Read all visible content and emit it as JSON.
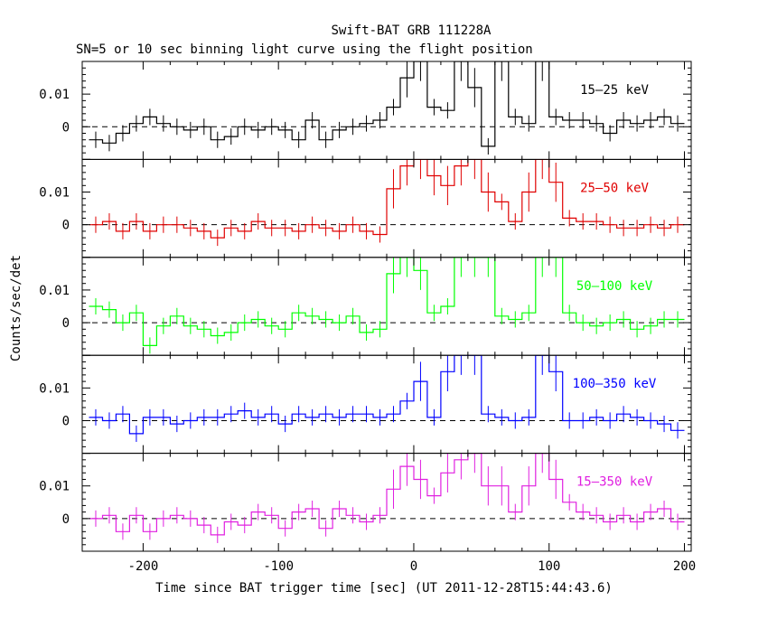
{
  "title": "Swift-BAT GRB 111228A",
  "subtitle": "SN=5 or 10 sec binning light curve using the flight position",
  "xlabel": "Time since BAT trigger time [sec] (UT 2011-12-28T15:44:43.6)",
  "ylabel": "Counts/sec/det",
  "colors": {
    "15-25": "#000000",
    "25-50": "#e00000",
    "50-100": "#00ff00",
    "100-350": "#0000ff",
    "15-350": "#e020e0"
  },
  "chart_data": {
    "type": "line",
    "style": "step histogram with error bars, 5 stacked panels sharing x axis",
    "x_ticks": [
      -200,
      -100,
      0,
      100,
      200
    ],
    "xlim": [
      -245,
      205
    ],
    "y_ticks": [
      0,
      0.01
    ],
    "ylim": [
      -0.01,
      0.02
    ],
    "reference_line": "dashed at y=0",
    "panels": [
      {
        "name": "15–25 keV",
        "color": "#000000",
        "x": [
          -235,
          -225,
          -215,
          -205,
          -195,
          -185,
          -175,
          -165,
          -155,
          -145,
          -135,
          -125,
          -115,
          -105,
          -95,
          -85,
          -75,
          -65,
          -55,
          -45,
          -35,
          -25,
          -15,
          -5,
          5,
          15,
          25,
          35,
          45,
          55,
          65,
          75,
          85,
          95,
          105,
          115,
          125,
          135,
          145,
          155,
          165,
          175,
          185,
          195
        ],
        "y": [
          -0.004,
          -0.005,
          -0.002,
          0.001,
          0.003,
          0.001,
          0,
          -0.001,
          0,
          -0.004,
          -0.003,
          0,
          -0.001,
          0,
          -0.001,
          -0.004,
          0.002,
          -0.004,
          -0.001,
          0,
          0.001,
          0.002,
          0.006,
          0.015,
          0.02,
          0.006,
          0.005,
          0.02,
          0.012,
          -0.006,
          0.02,
          0.003,
          0.001,
          0.02,
          0.003,
          0.002,
          0.002,
          0.001,
          -0.002,
          0.002,
          0.001,
          0.002,
          0.003,
          0.001
        ]
      },
      {
        "name": "25–50 keV",
        "color": "#e00000",
        "x": [
          -235,
          -225,
          -215,
          -205,
          -195,
          -185,
          -175,
          -165,
          -155,
          -145,
          -135,
          -125,
          -115,
          -105,
          -95,
          -85,
          -75,
          -65,
          -55,
          -45,
          -35,
          -25,
          -15,
          -5,
          5,
          15,
          25,
          35,
          45,
          55,
          65,
          75,
          85,
          95,
          105,
          115,
          125,
          135,
          145,
          155,
          165,
          175,
          185,
          195
        ],
        "y": [
          0,
          0.001,
          -0.002,
          0.001,
          -0.002,
          0,
          0,
          -0.001,
          -0.002,
          -0.004,
          -0.001,
          -0.002,
          0.001,
          -0.001,
          -0.001,
          -0.002,
          0,
          -0.001,
          -0.002,
          0,
          -0.002,
          -0.003,
          0.011,
          0.018,
          0.02,
          0.015,
          0.012,
          0.018,
          0.02,
          0.01,
          0.007,
          0.001,
          0.01,
          0.02,
          0.013,
          0.002,
          0.001,
          0.001,
          0,
          -0.001,
          -0.001,
          0,
          -0.001,
          0
        ]
      },
      {
        "name": "50–100 keV",
        "color": "#00ff00",
        "x": [
          -235,
          -225,
          -215,
          -205,
          -195,
          -185,
          -175,
          -165,
          -155,
          -145,
          -135,
          -125,
          -115,
          -105,
          -95,
          -85,
          -75,
          -65,
          -55,
          -45,
          -35,
          -25,
          -15,
          -5,
          5,
          15,
          25,
          35,
          45,
          55,
          65,
          75,
          85,
          95,
          105,
          115,
          125,
          135,
          145,
          155,
          165,
          175,
          185,
          195
        ],
        "y": [
          0.005,
          0.004,
          0,
          0.003,
          -0.007,
          -0.001,
          0.002,
          -0.001,
          -0.002,
          -0.004,
          -0.003,
          0,
          0.001,
          -0.001,
          -0.002,
          0.003,
          0.002,
          0.001,
          0,
          0.002,
          -0.003,
          -0.002,
          0.015,
          0.02,
          0.016,
          0.003,
          0.005,
          0.02,
          0.02,
          0.02,
          0.002,
          0.001,
          0.003,
          0.02,
          0.02,
          0.003,
          0,
          -0.001,
          0,
          0.001,
          -0.002,
          -0.001,
          0.001,
          0.001
        ]
      },
      {
        "name": "100–350 keV",
        "color": "#0000ff",
        "x": [
          -235,
          -225,
          -215,
          -205,
          -195,
          -185,
          -175,
          -165,
          -155,
          -145,
          -135,
          -125,
          -115,
          -105,
          -95,
          -85,
          -75,
          -65,
          -55,
          -45,
          -35,
          -25,
          -15,
          -5,
          5,
          15,
          25,
          35,
          45,
          55,
          65,
          75,
          85,
          95,
          105,
          115,
          125,
          135,
          145,
          155,
          165,
          175,
          185,
          195
        ],
        "y": [
          0.001,
          0,
          0.002,
          -0.004,
          0.001,
          0.001,
          -0.001,
          0,
          0.001,
          0.001,
          0.002,
          0.003,
          0.001,
          0.002,
          -0.001,
          0.002,
          0.001,
          0.002,
          0.001,
          0.002,
          0.002,
          0.001,
          0.002,
          0.006,
          0.012,
          0.001,
          0.015,
          0.02,
          0.02,
          0.002,
          0.001,
          0,
          0.001,
          0.02,
          0.015,
          0,
          0,
          0.001,
          0,
          0.002,
          0.001,
          0,
          -0.001,
          -0.003
        ]
      },
      {
        "name": "15–350 keV",
        "color": "#e020e0",
        "x": [
          -235,
          -225,
          -215,
          -205,
          -195,
          -185,
          -175,
          -165,
          -155,
          -145,
          -135,
          -125,
          -115,
          -105,
          -95,
          -85,
          -75,
          -65,
          -55,
          -45,
          -35,
          -25,
          -15,
          -5,
          5,
          15,
          25,
          35,
          45,
          55,
          65,
          75,
          85,
          95,
          105,
          115,
          125,
          135,
          145,
          155,
          165,
          175,
          185,
          195
        ],
        "y": [
          0,
          0.001,
          -0.004,
          0.001,
          -0.004,
          0,
          0.001,
          0,
          -0.002,
          -0.005,
          -0.001,
          -0.002,
          0.002,
          0.001,
          -0.003,
          0.002,
          0.003,
          -0.003,
          0.003,
          0.001,
          -0.001,
          0.001,
          0.009,
          0.016,
          0.012,
          0.007,
          0.014,
          0.018,
          0.02,
          0.01,
          0.01,
          0.002,
          0.01,
          0.02,
          0.012,
          0.005,
          0.002,
          0.001,
          -0.001,
          0.001,
          -0.001,
          0.002,
          0.003,
          -0.001
        ]
      }
    ]
  }
}
